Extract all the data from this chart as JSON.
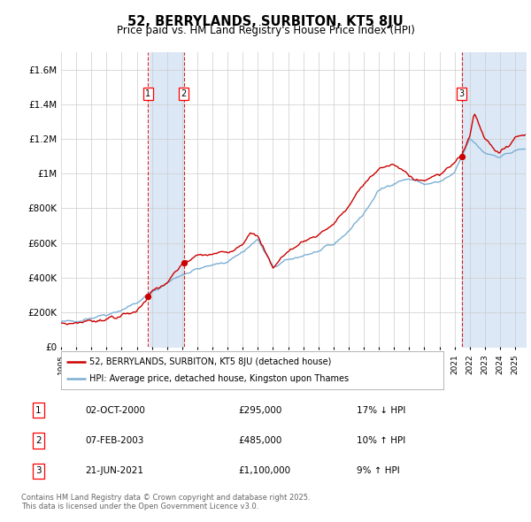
{
  "title": "52, BERRYLANDS, SURBITON, KT5 8JU",
  "subtitle": "Price paid vs. HM Land Registry's House Price Index (HPI)",
  "ylim": [
    0,
    1700000
  ],
  "yticks": [
    0,
    200000,
    400000,
    600000,
    800000,
    1000000,
    1200000,
    1400000,
    1600000
  ],
  "ytick_labels": [
    "£0",
    "£200K",
    "£400K",
    "£600K",
    "£800K",
    "£1M",
    "£1.2M",
    "£1.4M",
    "£1.6M"
  ],
  "hpi_color": "#7bafd4",
  "price_color": "#cc0000",
  "sale_date_floats": [
    2000.753,
    2003.101,
    2021.472
  ],
  "sale_prices": [
    295000,
    485000,
    1100000
  ],
  "sale_labels": [
    "1",
    "2",
    "3"
  ],
  "sale_date_strs": [
    "02-OCT-2000",
    "07-FEB-2003",
    "21-JUN-2021"
  ],
  "sale_price_strs": [
    "£295,000",
    "£485,000",
    "£1,100,000"
  ],
  "sale_hpi_strs": [
    "17% ↓ HPI",
    "10% ↑ HPI",
    "9% ↑ HPI"
  ],
  "legend_label_price": "52, BERRYLANDS, SURBITON, KT5 8JU (detached house)",
  "legend_label_hpi": "HPI: Average price, detached house, Kingston upon Thames",
  "footnote": "Contains HM Land Registry data © Crown copyright and database right 2025.\nThis data is licensed under the Open Government Licence v3.0.",
  "background_color": "#ffffff",
  "grid_color": "#cccccc",
  "shade_color": "#dce8f5",
  "xmin": 1995.0,
  "xmax": 2025.7
}
